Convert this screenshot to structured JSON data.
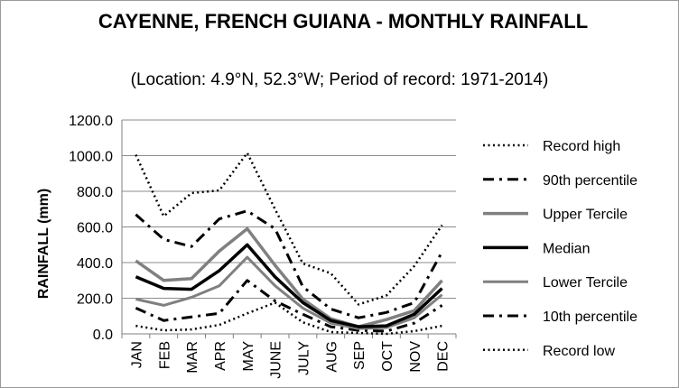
{
  "chart_data": {
    "type": "line",
    "title": "CAYENNE, FRENCH GUIANA - MONTHLY RAINFALL",
    "subtitle": "(Location: 4.9°N, 52.3°W; Period of record: 1971-2014)",
    "ylabel": "RAINFALL (mm)",
    "xlabel": "",
    "ylim": [
      0,
      1200
    ],
    "yticks": [
      "0.0",
      "200.0",
      "400.0",
      "600.0",
      "800.0",
      "1000.0",
      "1200.0"
    ],
    "categories": [
      "JAN",
      "FEB",
      "MAR",
      "APR",
      "MAY",
      "JUNE",
      "JULY",
      "AUG",
      "SEP",
      "OCT",
      "NOV",
      "DEC"
    ],
    "grid": true,
    "legend_position": "right",
    "series": [
      {
        "name": "Record high",
        "style": "dotted",
        "color": "#000000",
        "values": [
          1005,
          660,
          790,
          805,
          1015,
          700,
          395,
          340,
          165,
          215,
          380,
          610
        ]
      },
      {
        "name": "90th percentile",
        "style": "dashdot",
        "color": "#000000",
        "values": [
          670,
          530,
          490,
          645,
          690,
          590,
          265,
          140,
          90,
          120,
          175,
          460
        ]
      },
      {
        "name": "Upper Tercile",
        "style": "solid-thick",
        "color": "#808080",
        "values": [
          410,
          300,
          310,
          465,
          590,
          385,
          195,
          85,
          40,
          80,
          130,
          300
        ]
      },
      {
        "name": "Median",
        "style": "solid-thick",
        "color": "#000000",
        "values": [
          320,
          255,
          250,
          355,
          500,
          320,
          175,
          75,
          40,
          45,
          110,
          255
        ]
      },
      {
        "name": "Lower Tercile",
        "style": "solid",
        "color": "#808080",
        "values": [
          195,
          160,
          205,
          270,
          430,
          270,
          145,
          60,
          30,
          35,
          90,
          220
        ]
      },
      {
        "name": "10th percentile",
        "style": "dashdot",
        "color": "#000000",
        "values": [
          145,
          75,
          95,
          115,
          300,
          185,
          110,
          40,
          20,
          15,
          60,
          160
        ]
      },
      {
        "name": "Record low",
        "style": "dotted",
        "color": "#000000",
        "values": [
          45,
          20,
          25,
          50,
          115,
          175,
          65,
          10,
          5,
          0,
          15,
          45
        ]
      }
    ]
  }
}
